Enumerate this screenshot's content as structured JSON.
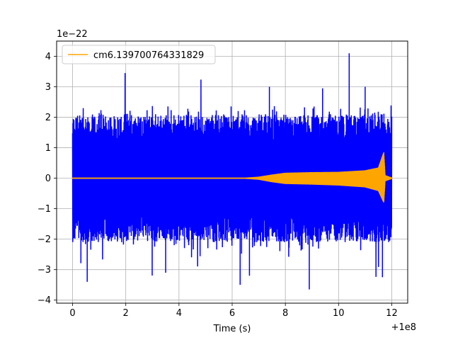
{
  "chart_data": {
    "type": "line",
    "title": "",
    "xlabel": "Time (s)",
    "ylabel": "",
    "x_offset_label": "+1e8",
    "y_scale_label": "1e−22",
    "xlim": [
      -0.6,
      12.6
    ],
    "ylim": [
      -4.1,
      4.5
    ],
    "x_ticks": [
      0,
      2,
      4,
      6,
      8,
      10,
      12
    ],
    "y_ticks": [
      -4,
      -3,
      -2,
      -1,
      0,
      1,
      2,
      3,
      4
    ],
    "x_tick_labels": [
      "0",
      "2",
      "4",
      "6",
      "8",
      "10",
      "12"
    ],
    "y_tick_labels": [
      "−4",
      "−3",
      "−2",
      "−1",
      "0",
      "1",
      "2",
      "3",
      "4"
    ],
    "grid": true,
    "legend": {
      "position": "top-left",
      "entries": [
        "cm6.139700764331829"
      ]
    },
    "series": [
      {
        "kind": "noise",
        "color": "#0000ff",
        "x_range": [
          0,
          12.0
        ],
        "envelope_core": 2.1,
        "envelope_min": -2.2,
        "peak_max": 4.1,
        "peak_min": -3.65
      },
      {
        "name": "cm6.139700764331829",
        "kind": "chirp",
        "color": "#ffa500",
        "x_range": [
          0,
          12.0
        ],
        "envelope_x": [
          0,
          6.5,
          7.0,
          7.5,
          8.0,
          9.0,
          10.0,
          11.0,
          11.5,
          11.7,
          11.75,
          12.0
        ],
        "envelope_upper": [
          0.02,
          0.02,
          0.05,
          0.12,
          0.18,
          0.2,
          0.21,
          0.26,
          0.35,
          0.85,
          0.1,
          0.02
        ],
        "envelope_lower": [
          -0.02,
          -0.02,
          -0.05,
          -0.13,
          -0.19,
          -0.21,
          -0.24,
          -0.3,
          -0.42,
          -0.8,
          -0.1,
          -0.02
        ]
      }
    ]
  }
}
